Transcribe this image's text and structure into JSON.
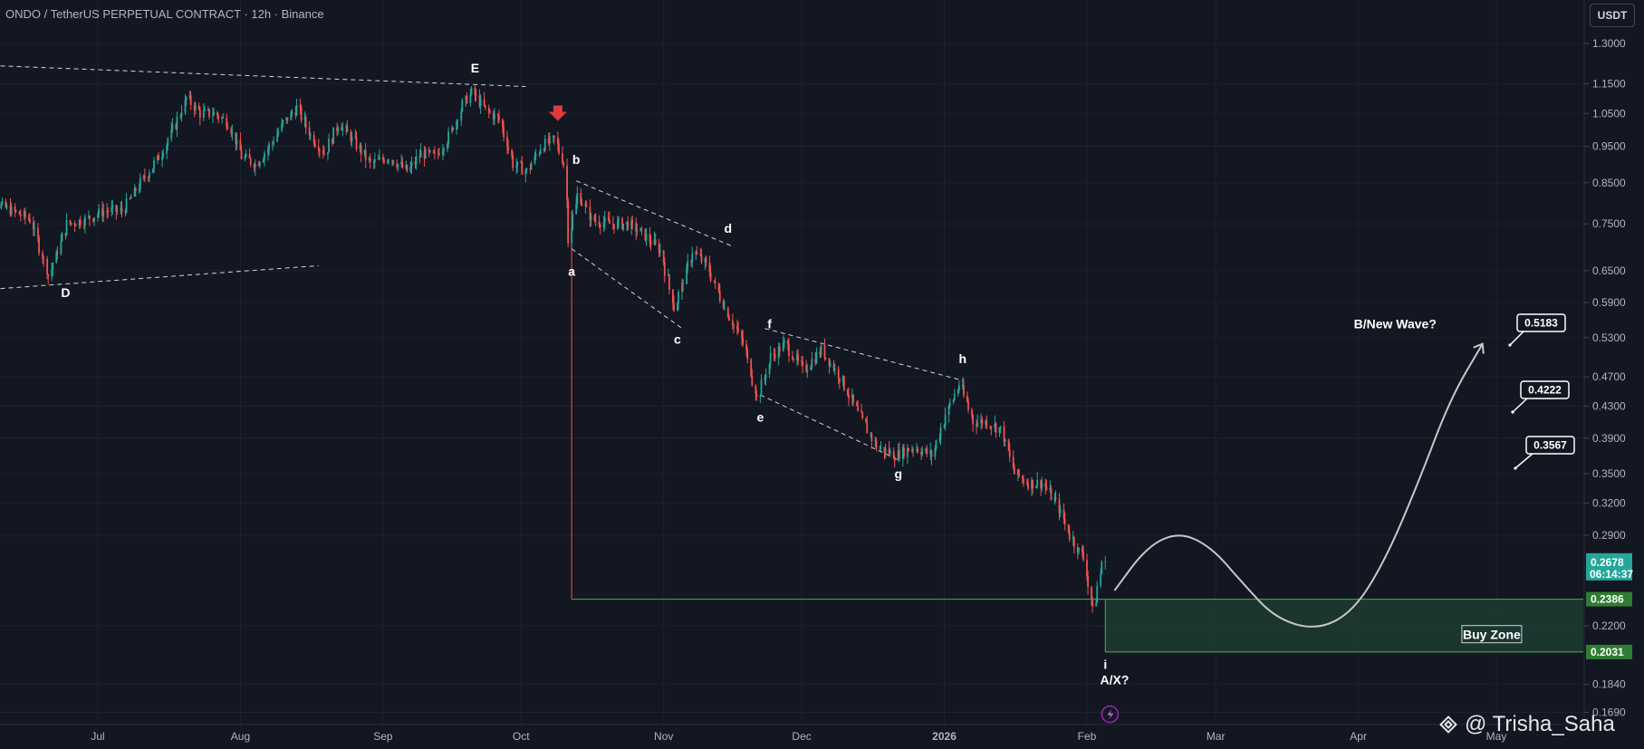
{
  "header": {
    "title": "ONDO / TetherUS PERPETUAL CONTRACT · 12h · Binance",
    "currency": "USDT"
  },
  "watermark": "@ Trisha_Saha",
  "colors": {
    "background": "#131722",
    "up": "#26a69a",
    "down": "#ef5350",
    "zone_fill": "#1d3b31",
    "zone_border": "#4caf50",
    "axis_text": "#b2b5be",
    "last_price_bg": "#26a69a",
    "level_bg": "#2e7d32"
  },
  "chart_data": {
    "type": "candlestick",
    "scale": "log",
    "ylim": [
      0.16,
      1.34
    ],
    "x_ticks": [
      {
        "label": "Jul",
        "date": "2025-07-01"
      },
      {
        "label": "Aug",
        "date": "2025-08-01"
      },
      {
        "label": "Sep",
        "date": "2025-09-01"
      },
      {
        "label": "Oct",
        "date": "2025-10-01"
      },
      {
        "label": "Nov",
        "date": "2025-11-01"
      },
      {
        "label": "Dec",
        "date": "2025-12-01"
      },
      {
        "label": "2026",
        "date": "2026-01-01"
      },
      {
        "label": "Feb",
        "date": "2026-02-01"
      },
      {
        "label": "Mar",
        "date": "2026-03-01"
      },
      {
        "label": "Apr",
        "date": "2026-04-01"
      },
      {
        "label": "May",
        "date": "2026-05-01"
      }
    ],
    "y_ticks": [
      "1.3000",
      "1.1500",
      "1.0500",
      "0.9500",
      "0.8500",
      "0.7500",
      "0.6500",
      "0.5900",
      "0.5300",
      "0.4700",
      "0.4300",
      "0.3900",
      "0.3500",
      "0.3200",
      "0.2900",
      "0.2200",
      "0.1840",
      "0.1690"
    ],
    "price_path": [
      [
        "2025-06-05",
        0.9
      ],
      [
        "2025-06-09",
        0.8
      ],
      [
        "2025-06-13",
        0.78
      ],
      [
        "2025-06-17",
        0.76
      ],
      [
        "2025-06-21",
        0.64
      ],
      [
        "2025-06-25",
        0.75
      ],
      [
        "2025-06-29",
        0.76
      ],
      [
        "2025-07-03",
        0.78
      ],
      [
        "2025-07-07",
        0.78
      ],
      [
        "2025-07-11",
        0.85
      ],
      [
        "2025-07-15",
        0.92
      ],
      [
        "2025-07-18",
        1.0
      ],
      [
        "2025-07-21",
        1.1
      ],
      [
        "2025-07-24",
        1.05
      ],
      [
        "2025-07-27",
        1.05
      ],
      [
        "2025-07-30",
        1.02
      ],
      [
        "2025-08-02",
        0.92
      ],
      [
        "2025-08-05",
        0.9
      ],
      [
        "2025-08-08",
        0.95
      ],
      [
        "2025-08-11",
        1.02
      ],
      [
        "2025-08-14",
        1.07
      ],
      [
        "2025-08-17",
        0.98
      ],
      [
        "2025-08-20",
        0.93
      ],
      [
        "2025-08-23",
        1.02
      ],
      [
        "2025-08-26",
        0.97
      ],
      [
        "2025-08-30",
        0.9
      ],
      [
        "2025-09-03",
        0.92
      ],
      [
        "2025-09-07",
        0.88
      ],
      [
        "2025-09-10",
        0.93
      ],
      [
        "2025-09-13",
        0.92
      ],
      [
        "2025-09-16",
        0.98
      ],
      [
        "2025-09-19",
        1.08
      ],
      [
        "2025-09-21",
        1.12
      ],
      [
        "2025-09-24",
        1.06
      ],
      [
        "2025-09-27",
        1.03
      ],
      [
        "2025-09-30",
        0.9
      ],
      [
        "2025-10-03",
        0.88
      ],
      [
        "2025-10-06",
        0.95
      ],
      [
        "2025-10-09",
        0.97
      ],
      [
        "2025-10-11",
        0.9
      ],
      [
        "2025-10-12",
        0.72
      ],
      [
        "2025-10-14",
        0.82
      ],
      [
        "2025-10-17",
        0.76
      ],
      [
        "2025-10-21",
        0.75
      ],
      [
        "2025-10-25",
        0.75
      ],
      [
        "2025-10-29",
        0.72
      ],
      [
        "2025-11-01",
        0.69
      ],
      [
        "2025-11-04",
        0.58
      ],
      [
        "2025-11-08",
        0.69
      ],
      [
        "2025-11-11",
        0.66
      ],
      [
        "2025-11-15",
        0.58
      ],
      [
        "2025-11-19",
        0.52
      ],
      [
        "2025-11-22",
        0.44
      ],
      [
        "2025-11-25",
        0.5
      ],
      [
        "2025-11-28",
        0.52
      ],
      [
        "2025-12-02",
        0.48
      ],
      [
        "2025-12-06",
        0.51
      ],
      [
        "2025-12-10",
        0.47
      ],
      [
        "2025-12-14",
        0.42
      ],
      [
        "2025-12-18",
        0.38
      ],
      [
        "2025-12-22",
        0.37
      ],
      [
        "2025-12-26",
        0.38
      ],
      [
        "2025-12-30",
        0.37
      ],
      [
        "2026-01-02",
        0.42
      ],
      [
        "2026-01-05",
        0.46
      ],
      [
        "2026-01-08",
        0.41
      ],
      [
        "2026-01-11",
        0.41
      ],
      [
        "2026-01-14",
        0.4
      ],
      [
        "2026-01-17",
        0.35
      ],
      [
        "2026-01-20",
        0.34
      ],
      [
        "2026-01-23",
        0.34
      ],
      [
        "2026-01-26",
        0.32
      ],
      [
        "2026-01-29",
        0.29
      ],
      [
        "2026-02-01",
        0.27
      ],
      [
        "2026-02-03",
        0.23
      ],
      [
        "2026-02-05",
        0.2678
      ]
    ],
    "wave_labels": [
      {
        "text": "D",
        "date": "2025-06-24",
        "price": 0.6
      },
      {
        "text": "E",
        "date": "2025-09-21",
        "price": 1.19
      },
      {
        "text": "a",
        "date": "2025-10-12",
        "price": 0.64
      },
      {
        "text": "b",
        "date": "2025-10-13",
        "price": 0.9
      },
      {
        "text": "c",
        "date": "2025-11-04",
        "price": 0.52
      },
      {
        "text": "d",
        "date": "2025-11-15",
        "price": 0.73
      },
      {
        "text": "e",
        "date": "2025-11-22",
        "price": 0.41
      },
      {
        "text": "f",
        "date": "2025-11-24",
        "price": 0.545
      },
      {
        "text": "g",
        "date": "2025-12-22",
        "price": 0.345
      },
      {
        "text": "h",
        "date": "2026-01-05",
        "price": 0.49
      },
      {
        "text": "i",
        "date": "2026-02-05",
        "price": 0.193
      },
      {
        "text": "A/X?",
        "date": "2026-02-07",
        "price": 0.184
      }
    ],
    "annotations": [
      {
        "text": "B/New Wave?",
        "date": "2026-04-09",
        "price": 0.545
      },
      {
        "text": "Buy Zone",
        "date": "2026-04-30",
        "price": 0.213
      }
    ],
    "targets": [
      "0.5183",
      "0.4222",
      "0.3567"
    ],
    "buy_zone": {
      "top": 0.2386,
      "bottom": 0.2031,
      "from": "2026-02-05"
    },
    "price_labels": {
      "last": "0.2678",
      "countdown": "06:14:37",
      "zone_top": "0.2386",
      "zone_bottom": "0.2031"
    },
    "projection": [
      [
        "2026-02-07",
        0.245
      ],
      [
        "2026-02-14",
        0.28
      ],
      [
        "2026-02-21",
        0.293
      ],
      [
        "2026-02-28",
        0.28
      ],
      [
        "2026-03-07",
        0.25
      ],
      [
        "2026-03-14",
        0.225
      ],
      [
        "2026-03-23",
        0.217
      ],
      [
        "2026-03-31",
        0.23
      ],
      [
        "2026-04-07",
        0.27
      ],
      [
        "2026-04-14",
        0.34
      ],
      [
        "2026-04-21",
        0.44
      ],
      [
        "2026-04-28",
        0.52
      ]
    ]
  }
}
